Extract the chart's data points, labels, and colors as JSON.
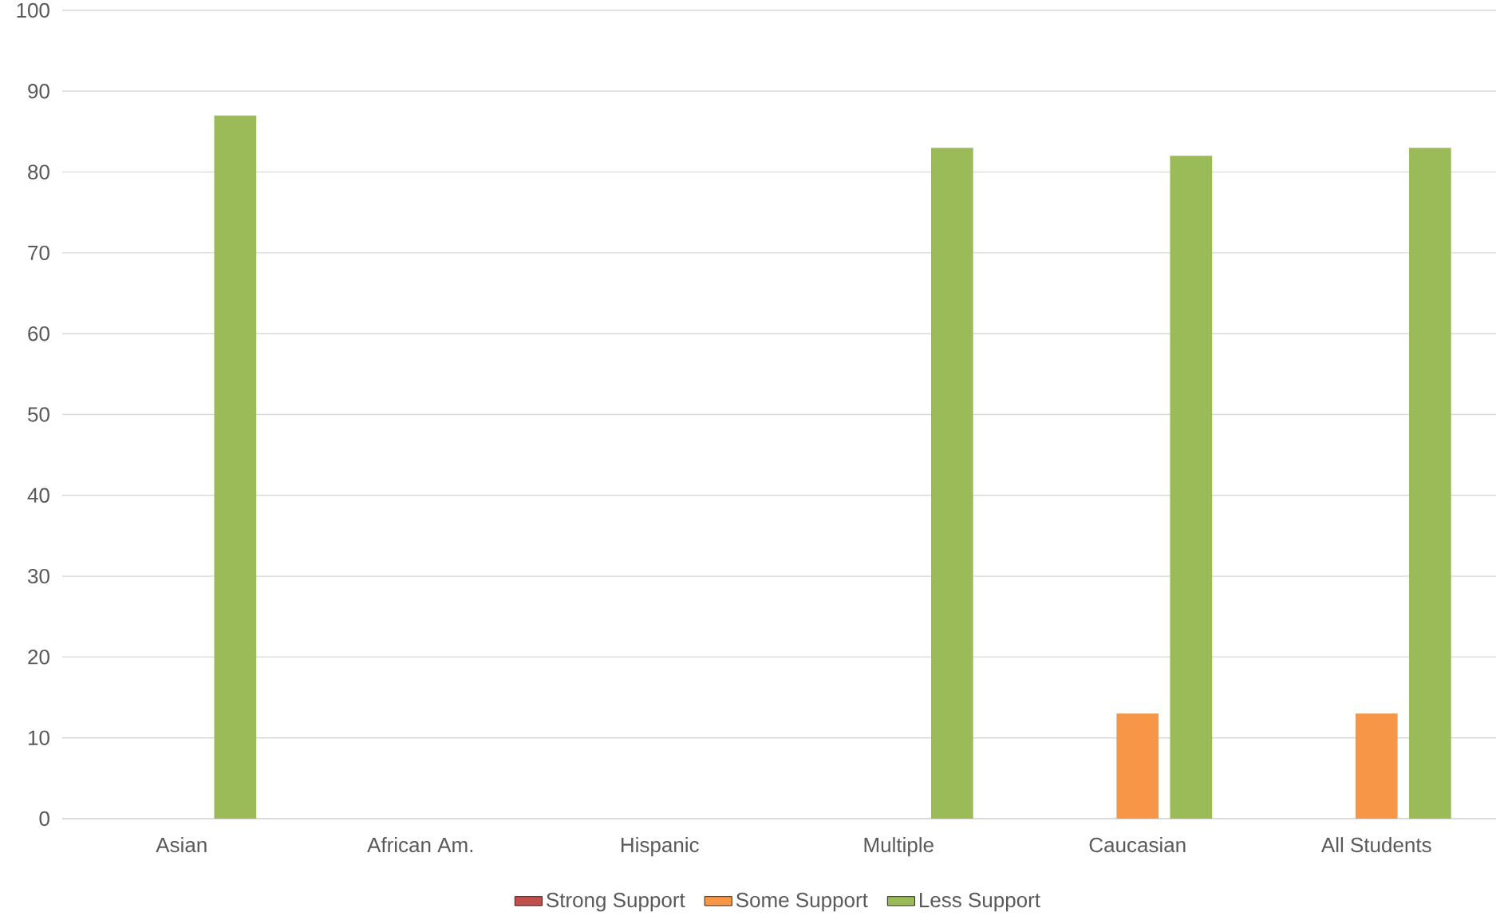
{
  "chart_data": {
    "type": "bar",
    "categories": [
      "Asian",
      "African Am.",
      "Hispanic",
      "Multiple",
      "Caucasian",
      "All Students"
    ],
    "series": [
      {
        "name": "Strong Support",
        "color": "#c0504d",
        "values": [
          null,
          null,
          null,
          null,
          null,
          null
        ]
      },
      {
        "name": "Some Support",
        "color": "#f79646",
        "values": [
          null,
          null,
          null,
          null,
          13,
          13
        ]
      },
      {
        "name": "Less Support",
        "color": "#9bbb59",
        "values": [
          87,
          null,
          null,
          83,
          82,
          83
        ]
      }
    ],
    "ylim": [
      0,
      100
    ],
    "yticks": [
      0,
      10,
      20,
      30,
      40,
      50,
      60,
      70,
      80,
      90,
      100
    ],
    "grid": "y",
    "legend": "bottom"
  }
}
